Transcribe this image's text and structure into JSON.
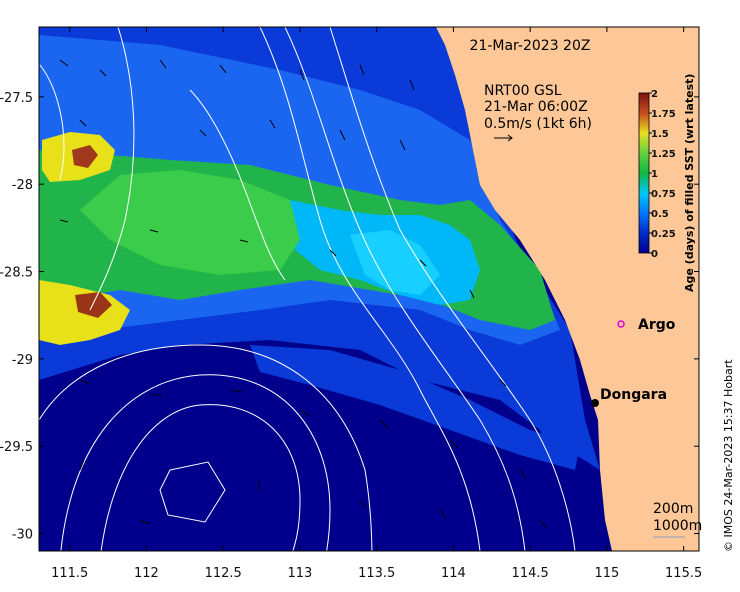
{
  "map": {
    "title_date": "21-Mar-2023 20Z",
    "product_lines": [
      "NRT00 GSL",
      "21-Mar 06:00Z",
      "0.5m/s (1kt 6h)"
    ],
    "x_ticks": [
      "111.5",
      "112",
      "112.5",
      "113",
      "113.5",
      "114",
      "114.5",
      "115",
      "115.5"
    ],
    "y_ticks": [
      "-27.5",
      "-28",
      "-28.5",
      "-29",
      "-29.5",
      "-30"
    ],
    "x_tick_values": [
      111.5,
      112,
      112.5,
      113,
      113.5,
      114,
      114.5,
      115,
      115.5
    ],
    "y_tick_values": [
      -27.5,
      -28,
      -28.5,
      -29,
      -29.5,
      -30
    ],
    "lon_range": [
      111.3,
      115.6
    ],
    "lat_range": [
      -27.1,
      -30.1
    ],
    "places": [
      {
        "name": "Argo",
        "lon": 115.05,
        "lat": -28.9,
        "marker": "circle-open",
        "color": "#e000e0"
      },
      {
        "name": "Dongara",
        "lon": 114.94,
        "lat": -29.25,
        "marker": "dot",
        "color": "#000000"
      }
    ],
    "depth_legend": [
      "200m",
      "1000m"
    ],
    "colorbar": {
      "title": "Age (days) of filled SST (wrt latest)",
      "ticks": [
        "2",
        "1.75",
        "1.5",
        "1.25",
        "1",
        "0.75",
        "0.5",
        "0.25",
        "0"
      ],
      "range": [
        0,
        2
      ],
      "colors": [
        "#00008c",
        "#0038d8",
        "#0090ff",
        "#00c8ff",
        "#20b848",
        "#3ad24a",
        "#c8e020",
        "#f0e000",
        "#a83a1e",
        "#7a1410"
      ]
    },
    "credit": "© IMOS 24-Mar-2023 15:37 Hobart",
    "colors": {
      "land": "#fdc797",
      "contour": "#ffffff"
    }
  }
}
